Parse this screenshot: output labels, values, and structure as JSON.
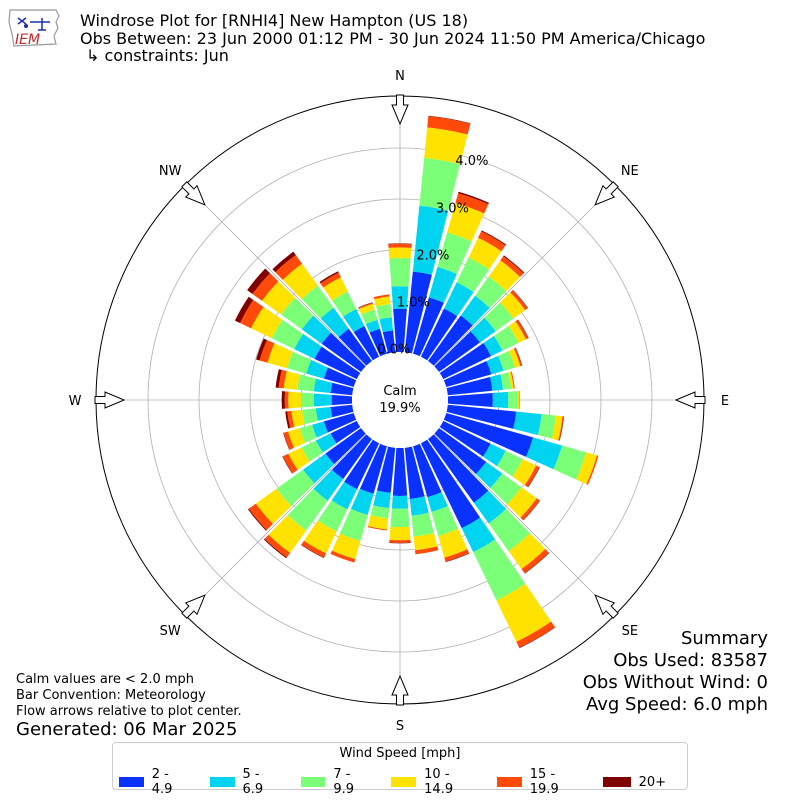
{
  "header": {
    "line1": "Windrose Plot for [RNHI4] New Hampton (US 18)",
    "line2": "Obs Between: 23 Jun 2000 01:12 PM - 30 Jun 2024 11:50 PM America/Chicago",
    "line3": "↳ constraints: Jun",
    "logo_text": "IEM"
  },
  "chart_data": {
    "type": "windrose",
    "directions_compass": [
      "N",
      "NE",
      "E",
      "SE",
      "S",
      "SW",
      "W",
      "NW"
    ],
    "radial_ticks": [
      "0.0%",
      "1.0%",
      "2.0%",
      "3.0%",
      "4.0%"
    ],
    "radial_values": [
      0,
      1,
      2,
      3,
      4
    ],
    "rlim": [
      0,
      4.3
    ],
    "calm_label": "Calm",
    "calm_value": "19.9%",
    "speed_bins": [
      "2 - 4.9",
      "5 - 6.9",
      "7 - 9.9",
      "10 - 14.9",
      "15 - 19.9",
      "20+"
    ],
    "bin_colors": [
      "#0a32ff",
      "#00d4f0",
      "#7cff78",
      "#ffe200",
      "#ff4a0a",
      "#800000"
    ],
    "bar_convention": "Meteorology",
    "directions_deg": [
      0,
      10,
      20,
      30,
      40,
      50,
      60,
      70,
      80,
      90,
      100,
      110,
      120,
      130,
      140,
      150,
      160,
      170,
      180,
      190,
      200,
      210,
      220,
      230,
      240,
      250,
      260,
      270,
      280,
      290,
      300,
      310,
      320,
      330,
      340,
      350
    ],
    "cumulative": [
      [
        0.85,
        1.29,
        1.84,
        2.05,
        2.12,
        2.13
      ],
      [
        1.59,
        2.89,
        3.83,
        4.43,
        4.65,
        4.66
      ],
      [
        1.15,
        1.77,
        2.47,
        3.07,
        3.27,
        3.3
      ],
      [
        1.05,
        1.62,
        2.16,
        2.59,
        2.73,
        2.75
      ],
      [
        1.1,
        1.58,
        2.04,
        2.43,
        2.53,
        2.55
      ],
      [
        0.99,
        1.37,
        1.8,
        2.08,
        2.14,
        2.15
      ],
      [
        1.04,
        1.29,
        1.64,
        1.8,
        1.85,
        1.86
      ],
      [
        0.92,
        1.17,
        1.4,
        1.51,
        1.54,
        1.55
      ],
      [
        0.88,
        1.09,
        1.25,
        1.3,
        1.32,
        1.32
      ],
      [
        0.88,
        1.18,
        1.37,
        1.4,
        1.41,
        1.41
      ],
      [
        1.35,
        1.85,
        2.13,
        2.26,
        2.28,
        2.29
      ],
      [
        1.77,
        2.36,
        2.85,
        3.07,
        3.1,
        3.1
      ],
      [
        1.03,
        1.36,
        1.73,
        2.02,
        2.09,
        2.1
      ],
      [
        1.14,
        1.53,
        1.99,
        2.36,
        2.43,
        2.44
      ],
      [
        1.54,
        2.04,
        2.71,
        3.14,
        3.24,
        3.25
      ],
      [
        1.85,
        2.37,
        3.42,
        4.32,
        4.45,
        4.46
      ],
      [
        1.04,
        1.34,
        1.83,
        2.27,
        2.35,
        2.36
      ],
      [
        1.01,
        1.34,
        1.75,
        2.02,
        2.1,
        2.1
      ],
      [
        0.94,
        1.19,
        1.55,
        1.81,
        1.86,
        1.87
      ],
      [
        0.89,
        1.19,
        1.39,
        1.61,
        1.63,
        1.63
      ],
      [
        0.97,
        1.4,
        1.93,
        2.3,
        2.37,
        2.37
      ],
      [
        1.0,
        1.44,
        1.92,
        2.4,
        2.49,
        2.5
      ],
      [
        0.97,
        1.49,
        2.21,
        2.75,
        2.86,
        2.88
      ],
      [
        0.86,
        1.4,
        2.04,
        2.54,
        2.71,
        2.73
      ],
      [
        0.57,
        0.89,
        1.2,
        1.49,
        1.61,
        1.62
      ],
      [
        0.61,
        0.85,
        1.1,
        1.34,
        1.43,
        1.44
      ],
      [
        0.43,
        0.72,
        0.99,
        1.2,
        1.28,
        1.32
      ],
      [
        0.4,
        0.75,
        1.0,
        1.25,
        1.32,
        1.38
      ],
      [
        0.43,
        0.76,
        1.08,
        1.35,
        1.45,
        1.51
      ],
      [
        0.61,
        0.97,
        1.36,
        1.76,
        1.92,
        1.99
      ],
      [
        0.92,
        1.36,
        1.85,
        2.3,
        2.54,
        2.65
      ],
      [
        0.95,
        1.43,
        1.93,
        2.39,
        2.62,
        2.75
      ],
      [
        0.78,
        1.29,
        1.82,
        2.35,
        2.56,
        2.64
      ],
      [
        0.67,
        1.04,
        1.42,
        1.73,
        1.83,
        1.86
      ],
      [
        0.51,
        0.69,
        0.9,
        1.02,
        1.04,
        1.05
      ],
      [
        0.43,
        0.69,
        0.95,
        1.1,
        1.14,
        1.14
      ]
    ]
  },
  "summary": {
    "title": "Summary",
    "obs_used": "Obs Used: 83587",
    "obs_without_wind": "Obs Without Wind: 0",
    "avg_speed": "Avg Speed: 6.0 mph"
  },
  "notes": {
    "calm": "Calm values are < 2.0 mph",
    "bar_convention": "Bar Convention: Meteorology",
    "flow_arrows": "Flow arrows relative to plot center.",
    "generated": "Generated: 06 Mar 2025"
  },
  "legend": {
    "title": "Wind Speed [mph]",
    "items": [
      {
        "label": "2 - 4.9",
        "color": "#0a32ff"
      },
      {
        "label": "5 - 6.9",
        "color": "#00d4f0"
      },
      {
        "label": "7 - 9.9",
        "color": "#7cff78"
      },
      {
        "label": "10 - 14.9",
        "color": "#ffe200"
      },
      {
        "label": "15 - 19.9",
        "color": "#ff4a0a"
      },
      {
        "label": "20+",
        "color": "#800000"
      }
    ]
  }
}
